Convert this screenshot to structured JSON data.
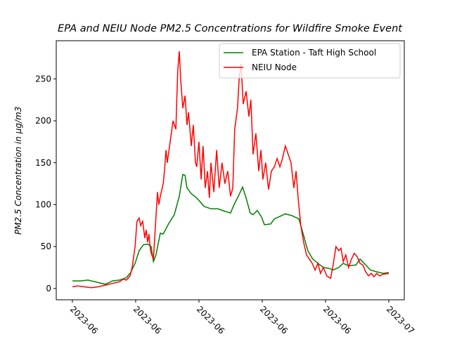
{
  "chart_data": {
    "type": "line",
    "title": "EPA and NEIU Node PM2.5 Concentrations for Wildfire Smoke Event",
    "y_label": "PM2.5 Concentration in μg/m3",
    "xlim": [
      -0.51,
      10.49
    ],
    "ylim": [
      -13.5,
      295.5
    ],
    "xticks": [
      {
        "value": 0,
        "label": "2023-06"
      },
      {
        "value": 2,
        "label": "2023-06"
      },
      {
        "value": 4,
        "label": "2023-06"
      },
      {
        "value": 6,
        "label": "2023-06"
      },
      {
        "value": 8,
        "label": "2023-06"
      },
      {
        "value": 10,
        "label": "2023-07"
      }
    ],
    "yticks": [
      0,
      50,
      100,
      150,
      200,
      250
    ],
    "legend": "upper right",
    "series": [
      {
        "name": "EPA Station - Taft High School",
        "color": "#008000",
        "x": [
          0,
          0.27,
          0.49,
          0.82,
          1.04,
          1.27,
          1.49,
          1.71,
          1.84,
          1.98,
          2.11,
          2.24,
          2.38,
          2.49,
          2.56,
          2.64,
          2.78,
          2.87,
          3.04,
          3.22,
          3.38,
          3.49,
          3.56,
          3.62,
          3.76,
          3.93,
          4.16,
          4.38,
          4.6,
          4.82,
          5.0,
          5.11,
          5.27,
          5.38,
          5.49,
          5.62,
          5.71,
          5.84,
          5.98,
          6.07,
          6.27,
          6.38,
          6.56,
          6.73,
          6.93,
          7.16,
          7.31,
          7.44,
          7.6,
          7.76,
          7.93,
          8.11,
          8.24,
          8.42,
          8.56,
          8.73,
          8.96,
          9.09,
          9.27,
          9.42,
          9.6,
          9.82,
          10
        ],
        "values": [
          9,
          9,
          10,
          7,
          5,
          9,
          10,
          13,
          19,
          30,
          45,
          52,
          53,
          50,
          32,
          40,
          66,
          65,
          77,
          88,
          110,
          136,
          135,
          120,
          113,
          108,
          98,
          95,
          95,
          92,
          90,
          100,
          112,
          121,
          108,
          90,
          88,
          93,
          85,
          76,
          77,
          83,
          86,
          89,
          87,
          83,
          63,
          45,
          35,
          30,
          25,
          24,
          22,
          25,
          30,
          27,
          28,
          35,
          28,
          22,
          20,
          18,
          19
        ]
      },
      {
        "name": "NEIU Node",
        "color": "#ff0000",
        "x": [
          0,
          0.16,
          0.38,
          0.6,
          0.82,
          1.04,
          1.27,
          1.49,
          1.6,
          1.71,
          1.82,
          1.89,
          1.98,
          2.04,
          2.11,
          2.16,
          2.22,
          2.29,
          2.33,
          2.38,
          2.42,
          2.47,
          2.51,
          2.56,
          2.6,
          2.64,
          2.69,
          2.73,
          2.78,
          2.87,
          2.91,
          2.96,
          3.0,
          3.09,
          3.18,
          3.27,
          3.33,
          3.38,
          3.42,
          3.49,
          3.56,
          3.62,
          3.67,
          3.76,
          3.82,
          3.89,
          3.93,
          4.0,
          4.07,
          4.13,
          4.2,
          4.27,
          4.33,
          4.38,
          4.47,
          4.56,
          4.64,
          4.73,
          4.82,
          4.91,
          5.0,
          5.07,
          5.13,
          5.22,
          5.27,
          5.33,
          5.4,
          5.49,
          5.58,
          5.64,
          5.71,
          5.8,
          5.89,
          5.96,
          6.02,
          6.11,
          6.2,
          6.29,
          6.38,
          6.47,
          6.56,
          6.64,
          6.73,
          6.82,
          6.91,
          7.0,
          7.07,
          7.13,
          7.22,
          7.31,
          7.4,
          7.49,
          7.58,
          7.67,
          7.76,
          7.84,
          7.93,
          8.04,
          8.16,
          8.24,
          8.33,
          8.42,
          8.49,
          8.56,
          8.64,
          8.73,
          8.82,
          8.91,
          9.0,
          9.09,
          9.18,
          9.27,
          9.36,
          9.44,
          9.53,
          9.62,
          9.71,
          9.82,
          10
        ],
        "values": [
          2,
          3,
          2,
          1,
          2,
          4,
          6,
          8,
          11,
          10,
          15,
          25,
          50,
          80,
          84,
          75,
          80,
          60,
          70,
          55,
          65,
          45,
          40,
          35,
          60,
          85,
          115,
          100,
          110,
          125,
          140,
          165,
          150,
          175,
          200,
          190,
          260,
          283,
          250,
          215,
          230,
          195,
          210,
          170,
          195,
          150,
          145,
          175,
          130,
          170,
          120,
          140,
          108,
          150,
          115,
          165,
          120,
          150,
          125,
          140,
          110,
          120,
          190,
          215,
          250,
          268,
          220,
          235,
          205,
          225,
          160,
          185,
          140,
          165,
          130,
          150,
          118,
          140,
          145,
          155,
          145,
          155,
          170,
          160,
          150,
          120,
          140,
          110,
          75,
          55,
          40,
          35,
          30,
          22,
          30,
          18,
          25,
          15,
          12,
          28,
          50,
          45,
          48,
          32,
          40,
          25,
          35,
          42,
          38,
          30,
          28,
          20,
          15,
          18,
          14,
          18,
          15,
          17,
          18
        ]
      }
    ]
  }
}
